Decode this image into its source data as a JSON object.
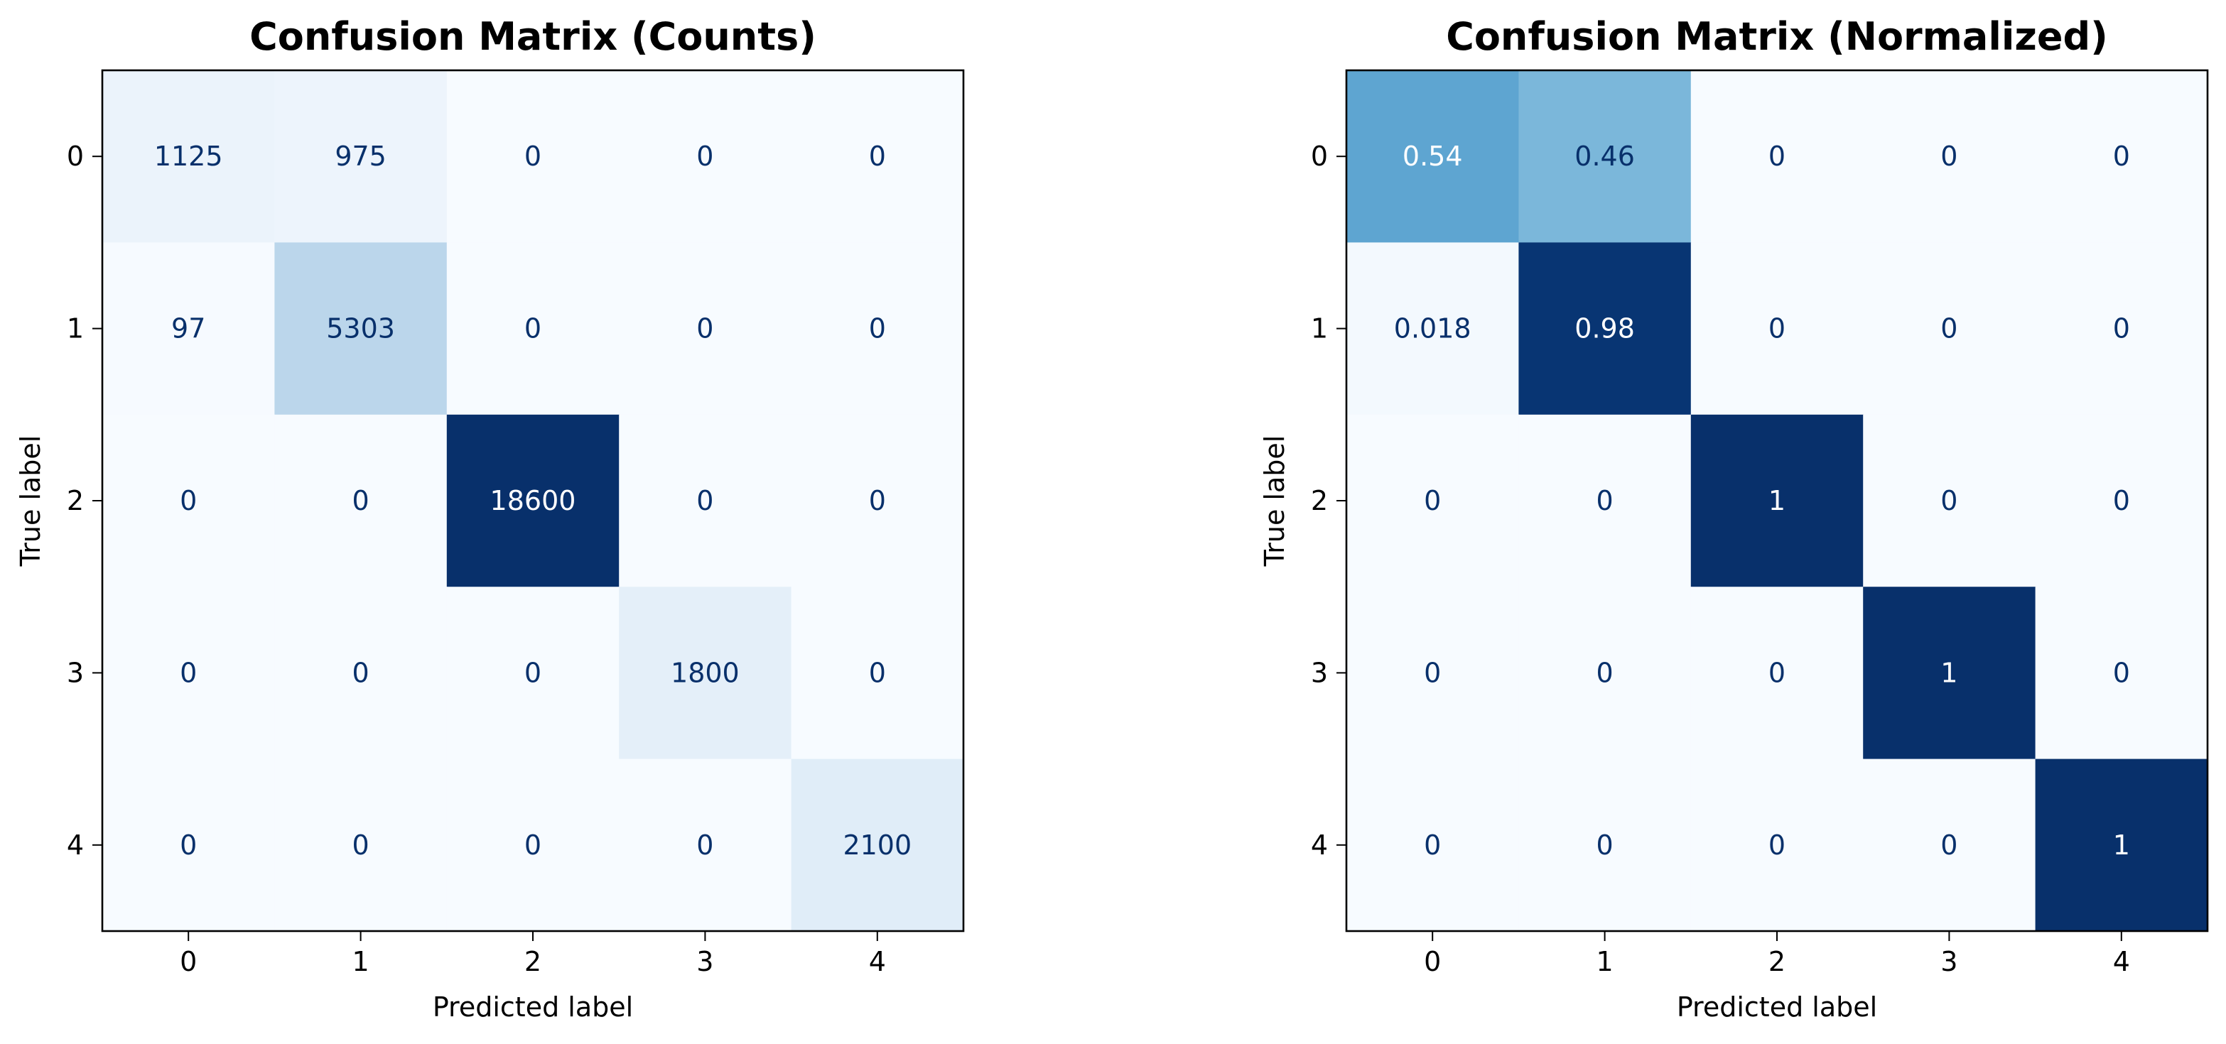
{
  "chart_data": [
    {
      "type": "heatmap",
      "title": "Confusion Matrix (Counts)",
      "xlabel": "Predicted label",
      "ylabel": "True label",
      "x_categories": [
        "0",
        "1",
        "2",
        "3",
        "4"
      ],
      "y_categories": [
        "0",
        "1",
        "2",
        "3",
        "4"
      ],
      "values": [
        [
          1125,
          975,
          0,
          0,
          0
        ],
        [
          97,
          5303,
          0,
          0,
          0
        ],
        [
          0,
          0,
          18600,
          0,
          0
        ],
        [
          0,
          0,
          0,
          1800,
          0
        ],
        [
          0,
          0,
          0,
          0,
          2100
        ]
      ],
      "cell_labels": [
        [
          "1125",
          "975",
          "0",
          "0",
          "0"
        ],
        [
          "97",
          "5303",
          "0",
          "0",
          "0"
        ],
        [
          "0",
          "0",
          "18600",
          "0",
          "0"
        ],
        [
          "0",
          "0",
          "0",
          "1800",
          "0"
        ],
        [
          "0",
          "0",
          "0",
          "0",
          "2100"
        ]
      ],
      "colormap": "Blues",
      "color_range": [
        0,
        18600
      ],
      "grid": false,
      "colorbar": false
    },
    {
      "type": "heatmap",
      "title": "Confusion Matrix (Normalized)",
      "xlabel": "Predicted label",
      "ylabel": "True label",
      "x_categories": [
        "0",
        "1",
        "2",
        "3",
        "4"
      ],
      "y_categories": [
        "0",
        "1",
        "2",
        "3",
        "4"
      ],
      "values": [
        [
          0.54,
          0.46,
          0,
          0,
          0
        ],
        [
          0.018,
          0.98,
          0,
          0,
          0
        ],
        [
          0,
          0,
          1,
          0,
          0
        ],
        [
          0,
          0,
          0,
          1,
          0
        ],
        [
          0,
          0,
          0,
          0,
          1
        ]
      ],
      "cell_labels": [
        [
          "0.54",
          "0.46",
          "0",
          "0",
          "0"
        ],
        [
          "0.018",
          "0.98",
          "0",
          "0",
          "0"
        ],
        [
          "0",
          "0",
          "1",
          "0",
          "0"
        ],
        [
          "0",
          "0",
          "0",
          "1",
          "0"
        ],
        [
          "0",
          "0",
          "0",
          "0",
          "1"
        ]
      ],
      "colormap": "Blues",
      "color_range": [
        0,
        1
      ],
      "grid": false,
      "colorbar": false
    }
  ],
  "colors": {
    "cmap_low": "#f7fbff",
    "cmap_high": "#08306b",
    "text_dark": "#08306b",
    "text_light": "#ffffff",
    "axis": "#000000"
  }
}
